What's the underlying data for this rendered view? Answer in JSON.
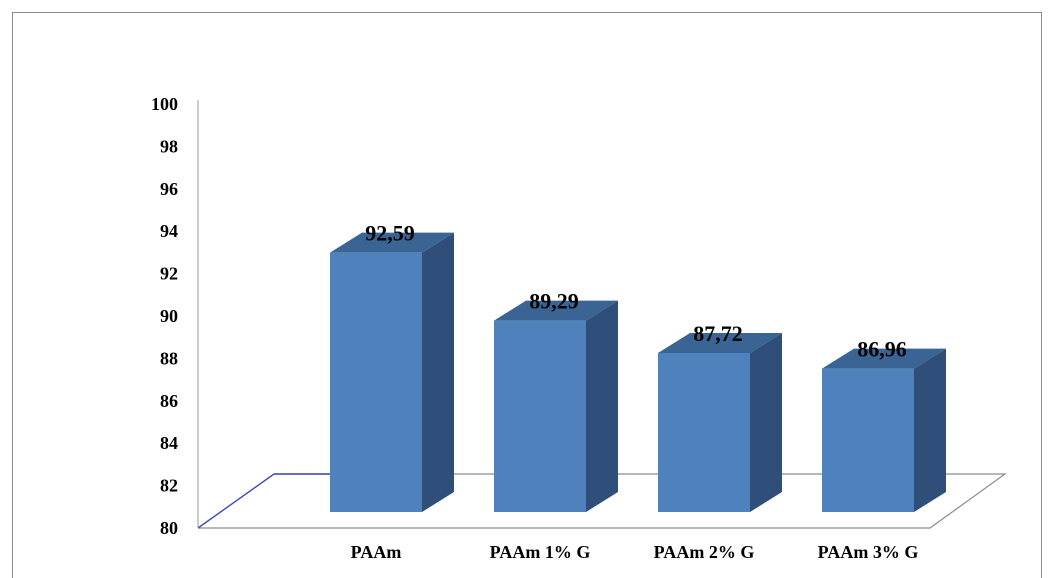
{
  "chart_data": {
    "type": "bar",
    "title": "",
    "xlabel": "",
    "ylabel": "",
    "categories": [
      "PAAm",
      "PAAm 1% G",
      "PAAm 2% G",
      "PAAm 3% G"
    ],
    "values": [
      92.59,
      89.29,
      87.72,
      86.96
    ],
    "data_labels": [
      "92,59",
      "89,29",
      "87,72",
      "86,96"
    ],
    "ylim": [
      80,
      100
    ],
    "yticks": [
      80,
      82,
      84,
      86,
      88,
      90,
      92,
      94,
      96,
      98,
      100
    ],
    "ytick_labels": [
      "80",
      "82",
      "84",
      "86",
      "88",
      "90",
      "92",
      "94",
      "96",
      "98",
      "100"
    ],
    "grid": false,
    "legend": "none",
    "style": "3d-bar",
    "colors": {
      "bar_front": "#4f81bd",
      "bar_side": "#2f4f7a",
      "bar_top": "#3a6494",
      "axis": "#3b4bbd",
      "floor": "#8c8c8c"
    }
  }
}
